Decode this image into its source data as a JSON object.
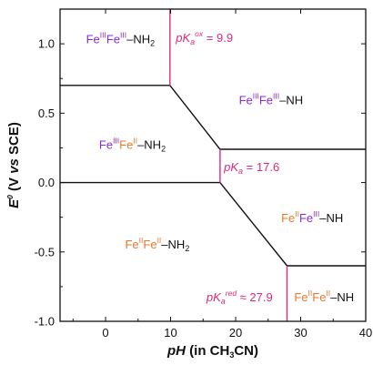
{
  "chart_data": {
    "type": "line",
    "title": "",
    "xlabel_parts": [
      {
        "t": "pH",
        "italic": true
      },
      {
        "t": " (in CH"
      },
      {
        "t": "3",
        "sub": true
      },
      {
        "t": "CN)"
      }
    ],
    "ylabel_parts": [
      {
        "t": "E",
        "italic": true
      },
      {
        "t": "0",
        "sup": true,
        "italic": true
      },
      {
        "t": " (V "
      },
      {
        "t": "vs",
        "italic": true
      },
      {
        "t": " SCE)"
      }
    ],
    "xlim": [
      -7,
      40
    ],
    "ylim": [
      -1.0,
      1.25
    ],
    "x_ticks": [
      0,
      10,
      20,
      30,
      40
    ],
    "y_ticks": [
      -1.0,
      -0.5,
      0.0,
      0.5,
      1.0
    ],
    "y_tick_labels": [
      "-1.0",
      "-0.5",
      "0.0",
      "0.5",
      "1.0"
    ],
    "boundaries": [
      {
        "name": "upper",
        "color": "#111111",
        "x": [
          -7,
          9.9,
          17.6,
          40
        ],
        "y": [
          0.7,
          0.7,
          0.24,
          0.24
        ]
      },
      {
        "name": "lower",
        "color": "#111111",
        "x": [
          -7,
          17.6,
          27.9,
          40
        ],
        "y": [
          0.0,
          0.0,
          -0.6,
          -0.6
        ]
      },
      {
        "name": "pKa-ox",
        "color": "#e0287a",
        "x": [
          9.9,
          9.9
        ],
        "y": [
          1.25,
          0.7
        ]
      },
      {
        "name": "pKa",
        "color": "#e0287a",
        "x": [
          17.6,
          17.6
        ],
        "y": [
          0.24,
          0.0
        ]
      },
      {
        "name": "pKa-red",
        "color": "#e0287a",
        "x": [
          27.9,
          27.9
        ],
        "y": [
          -0.6,
          -1.0
        ]
      }
    ],
    "regions": [
      {
        "x": -3,
        "y": 1.03,
        "parts": [
          {
            "t": "Fe",
            "c": "#8a2be2"
          },
          {
            "t": "III",
            "c": "#8a2be2",
            "sup": true
          },
          {
            "t": "Fe",
            "c": "#8a2be2"
          },
          {
            "t": "III",
            "c": "#8a2be2",
            "sup": true
          },
          {
            "t": "–NH",
            "c": "#111111"
          },
          {
            "t": "2",
            "c": "#111111",
            "sub": true
          }
        ]
      },
      {
        "x": 20.5,
        "y": 0.59,
        "parts": [
          {
            "t": "Fe",
            "c": "#8a2be2"
          },
          {
            "t": "III",
            "c": "#8a2be2",
            "sup": true
          },
          {
            "t": "Fe",
            "c": "#8a2be2"
          },
          {
            "t": "III",
            "c": "#8a2be2",
            "sup": true
          },
          {
            "t": "–NH",
            "c": "#111111"
          }
        ]
      },
      {
        "x": -1,
        "y": 0.27,
        "parts": [
          {
            "t": "Fe",
            "c": "#8a2be2"
          },
          {
            "t": "III",
            "c": "#8a2be2",
            "sup": true
          },
          {
            "t": "Fe",
            "c": "#e8782a"
          },
          {
            "t": "II",
            "c": "#e8782a",
            "sup": true
          },
          {
            "t": "–NH",
            "c": "#111111"
          },
          {
            "t": "2",
            "c": "#111111",
            "sub": true
          }
        ]
      },
      {
        "x": 27,
        "y": -0.26,
        "parts": [
          {
            "t": "Fe",
            "c": "#e8782a"
          },
          {
            "t": "II",
            "c": "#e8782a",
            "sup": true
          },
          {
            "t": "Fe",
            "c": "#8a2be2"
          },
          {
            "t": "III",
            "c": "#8a2be2",
            "sup": true
          },
          {
            "t": "–NH",
            "c": "#111111"
          }
        ]
      },
      {
        "x": 3,
        "y": -0.45,
        "parts": [
          {
            "t": "Fe",
            "c": "#e8782a"
          },
          {
            "t": "II",
            "c": "#e8782a",
            "sup": true
          },
          {
            "t": "Fe",
            "c": "#e8782a"
          },
          {
            "t": "II",
            "c": "#e8782a",
            "sup": true
          },
          {
            "t": "–NH",
            "c": "#111111"
          },
          {
            "t": "2",
            "c": "#111111",
            "sub": true
          }
        ]
      },
      {
        "x": 29,
        "y": -0.83,
        "parts": [
          {
            "t": "Fe",
            "c": "#e8782a"
          },
          {
            "t": "II",
            "c": "#e8782a",
            "sup": true
          },
          {
            "t": "Fe",
            "c": "#e8782a"
          },
          {
            "t": "II",
            "c": "#e8782a",
            "sup": true
          },
          {
            "t": "–NH",
            "c": "#111111"
          }
        ]
      }
    ],
    "pka_labels": [
      {
        "x": 10.8,
        "y": 1.04,
        "parts": [
          {
            "t": "pK",
            "italic": true
          },
          {
            "t": "a",
            "italic": true,
            "sub": true
          },
          {
            "t": "ox",
            "italic": true,
            "sup": true
          },
          {
            "t": " = 9.9"
          }
        ]
      },
      {
        "x": 18.2,
        "y": 0.11,
        "parts": [
          {
            "t": "pK",
            "italic": true
          },
          {
            "t": "a",
            "italic": true,
            "sub": true
          },
          {
            "t": " = 17.6"
          }
        ]
      },
      {
        "x": 15.5,
        "y": -0.83,
        "parts": [
          {
            "t": "pK",
            "italic": true
          },
          {
            "t": "a",
            "italic": true,
            "sub": true
          },
          {
            "t": "red",
            "italic": true,
            "sup": true
          },
          {
            "t": " ≈ 27.9"
          }
        ]
      }
    ]
  }
}
